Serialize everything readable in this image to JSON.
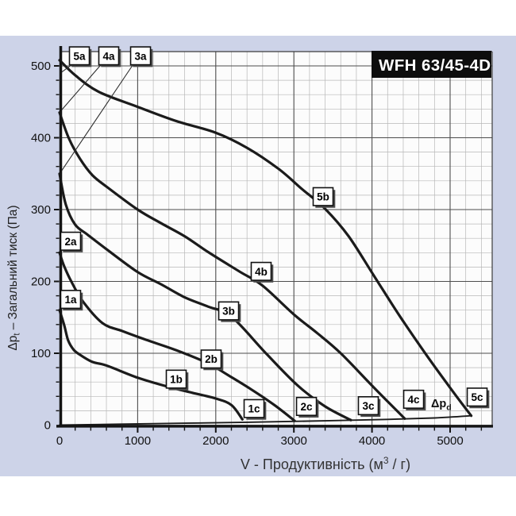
{
  "title_box": {
    "label": "WFH 63/45-4D",
    "bg": "#0d0d0d",
    "fg": "#ffffff"
  },
  "panel": {
    "bg": "#cdd3e8",
    "plot_bg": "#fcfcfc",
    "major_grid": "#4d4d4d",
    "minor_grid": "#b7b7b7",
    "axis": "#141414",
    "curve": "#1b1b1b"
  },
  "axes": {
    "y": {
      "title_main": "Δp",
      "title_sub": "t",
      "title_rest": " – Загальний тиск (Па)",
      "ticks": [
        0,
        100,
        200,
        300,
        400,
        500
      ],
      "minor_step": 20,
      "max": 520
    },
    "x": {
      "title_pre": "V - Продуктивність  (м",
      "title_sup": "3",
      "title_post": " / г)",
      "ticks": [
        0,
        1000,
        2000,
        3000,
        4000,
        5000
      ],
      "minor_step": 200,
      "max": 5440
    }
  },
  "dp_label": {
    "main": "Δp",
    "sub": "d"
  },
  "chart_data": {
    "type": "line",
    "title": "WFH 63/45-4D",
    "xlabel": "V - Продуктивність (м3/г)",
    "ylabel": "Δpt – Загальний тиск (Па)",
    "xlim": [
      0,
      5440
    ],
    "ylim": [
      0,
      520
    ],
    "grid": "on",
    "series": [
      {
        "name": "1",
        "points": [
          [
            0,
            160
          ],
          [
            60,
            139
          ],
          [
            110,
            118
          ],
          [
            180,
            105
          ],
          [
            260,
            98
          ],
          [
            420,
            88
          ],
          [
            600,
            83
          ],
          [
            1000,
            66
          ],
          [
            1400,
            53
          ],
          [
            1700,
            45
          ],
          [
            2000,
            37
          ],
          [
            2200,
            28
          ],
          [
            2340,
            8
          ]
        ]
      },
      {
        "name": "2",
        "points": [
          [
            0,
            240
          ],
          [
            60,
            221
          ],
          [
            150,
            200
          ],
          [
            300,
            172
          ],
          [
            550,
            142
          ],
          [
            800,
            131
          ],
          [
            1100,
            119
          ],
          [
            1500,
            104
          ],
          [
            1900,
            86
          ],
          [
            2150,
            70
          ],
          [
            2450,
            50
          ],
          [
            2750,
            28
          ],
          [
            3010,
            6
          ]
        ]
      },
      {
        "name": "3",
        "points": [
          [
            0,
            350
          ],
          [
            80,
            307
          ],
          [
            200,
            279
          ],
          [
            360,
            265
          ],
          [
            600,
            245
          ],
          [
            1000,
            213
          ],
          [
            1300,
            196
          ],
          [
            1600,
            178
          ],
          [
            1900,
            165
          ],
          [
            2200,
            151
          ],
          [
            2650,
            99
          ],
          [
            3050,
            55
          ],
          [
            3400,
            26
          ],
          [
            3730,
            7
          ]
        ]
      },
      {
        "name": "4",
        "points": [
          [
            0,
            435
          ],
          [
            120,
            399
          ],
          [
            260,
            371
          ],
          [
            420,
            348
          ],
          [
            600,
            332
          ],
          [
            1000,
            300
          ],
          [
            1300,
            281
          ],
          [
            1600,
            263
          ],
          [
            1900,
            241
          ],
          [
            2300,
            214
          ],
          [
            2600,
            194
          ],
          [
            3000,
            154
          ],
          [
            3300,
            128
          ],
          [
            3600,
            100
          ],
          [
            4000,
            55
          ],
          [
            4420,
            9
          ]
        ]
      },
      {
        "name": "5",
        "points": [
          [
            0,
            508
          ],
          [
            200,
            487
          ],
          [
            500,
            464
          ],
          [
            1000,
            443
          ],
          [
            1500,
            423
          ],
          [
            2000,
            407
          ],
          [
            2400,
            386
          ],
          [
            2800,
            357
          ],
          [
            3100,
            329
          ],
          [
            3400,
            301
          ],
          [
            3700,
            263
          ],
          [
            4030,
            207
          ],
          [
            4360,
            151
          ],
          [
            4700,
            97
          ],
          [
            5000,
            52
          ],
          [
            5270,
            13
          ]
        ]
      },
      {
        "name": "Δpd",
        "points": [
          [
            0,
            0
          ],
          [
            1200,
            2
          ],
          [
            2400,
            4
          ],
          [
            3400,
            6
          ],
          [
            4200,
            8
          ],
          [
            4800,
            10
          ],
          [
            5270,
            13
          ]
        ],
        "thin": true
      }
    ],
    "labels": [
      {
        "id": "5a",
        "text": "5a",
        "v": 254,
        "p": 514
      },
      {
        "id": "4a",
        "text": "4a",
        "v": 630,
        "p": 514
      },
      {
        "id": "3a",
        "text": "3a",
        "v": 1037,
        "p": 514
      },
      {
        "id": "2a",
        "text": "2a",
        "v": 142,
        "p": 256
      },
      {
        "id": "1a",
        "text": "1a",
        "v": 142,
        "p": 175
      },
      {
        "id": "5b",
        "text": "5b",
        "v": 3374,
        "p": 318
      },
      {
        "id": "4b",
        "text": "4b",
        "v": 2581,
        "p": 214
      },
      {
        "id": "3b",
        "text": "3b",
        "v": 2165,
        "p": 159
      },
      {
        "id": "2b",
        "text": "2b",
        "v": 1941,
        "p": 92
      },
      {
        "id": "1b",
        "text": "1b",
        "v": 1494,
        "p": 64
      },
      {
        "id": "1c",
        "text": "1c",
        "v": 2490,
        "p": 23
      },
      {
        "id": "2c",
        "text": "2c",
        "v": 3161,
        "p": 26
      },
      {
        "id": "3c",
        "text": "3c",
        "v": 3953,
        "p": 27
      },
      {
        "id": "4c",
        "text": "4c",
        "v": 4533,
        "p": 36
      },
      {
        "id": "5c",
        "text": "5c",
        "v": 5346,
        "p": 39
      }
    ],
    "connectors": [
      {
        "from": [
          150,
          501
        ],
        "to": [
          10,
          490
        ]
      },
      {
        "from": [
          525,
          501
        ],
        "to": [
          14,
          437
        ]
      },
      {
        "from": [
          930,
          500
        ],
        "to": [
          14,
          352
        ]
      }
    ]
  }
}
